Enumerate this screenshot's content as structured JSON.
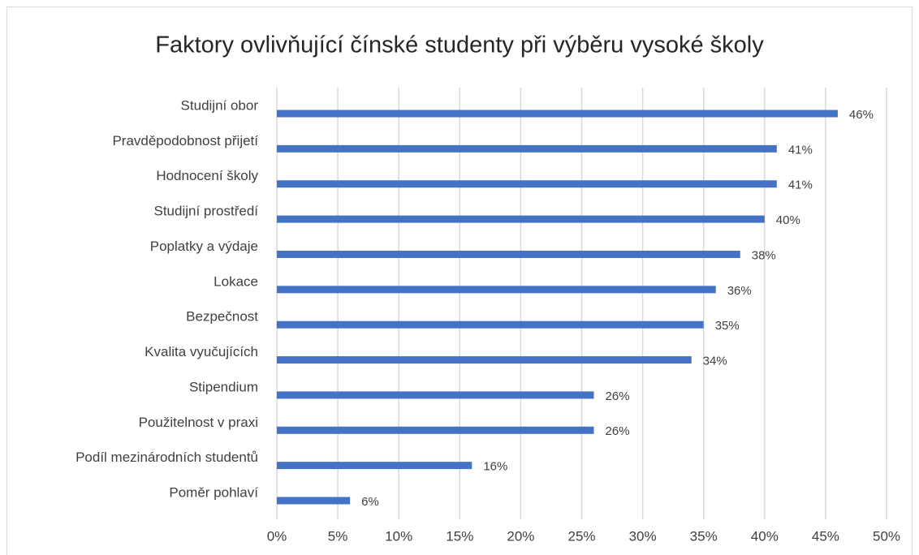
{
  "chart_data": {
    "type": "bar",
    "orientation": "horizontal",
    "title": "Faktory ovlivňující čínské studenty při výběru vysoké školy",
    "categories": [
      "Studijní obor",
      "Pravděpodobnost přijetí",
      "Hodnocení školy",
      "Studijní prostředí",
      "Poplatky a výdaje",
      "Lokace",
      "Bezpečnost",
      "Kvalita vyučujících",
      "Stipendium",
      "Použitelnost v praxi",
      "Podíl mezinárodních studentů",
      "Poměr pohlaví"
    ],
    "values": [
      46,
      41,
      41,
      40,
      38,
      36,
      35,
      34,
      26,
      26,
      16,
      6
    ],
    "value_labels": [
      "46%",
      "41%",
      "41%",
      "40%",
      "38%",
      "36%",
      "35%",
      "34%",
      "26%",
      "26%",
      "16%",
      "6%"
    ],
    "color": "#4472c4",
    "xlim": [
      0,
      50
    ],
    "xticks": [
      {
        "value": 0,
        "label": "0%"
      },
      {
        "value": 5,
        "label": "5%"
      },
      {
        "value": 10,
        "label": "10%"
      },
      {
        "value": 15,
        "label": "15%"
      },
      {
        "value": 20,
        "label": "20%"
      },
      {
        "value": 25,
        "label": "25%"
      },
      {
        "value": 30,
        "label": "30%"
      },
      {
        "value": 35,
        "label": "35%"
      },
      {
        "value": 40,
        "label": "40%"
      },
      {
        "value": 45,
        "label": "45%"
      },
      {
        "value": 50,
        "label": "50%"
      }
    ],
    "grid": true
  }
}
